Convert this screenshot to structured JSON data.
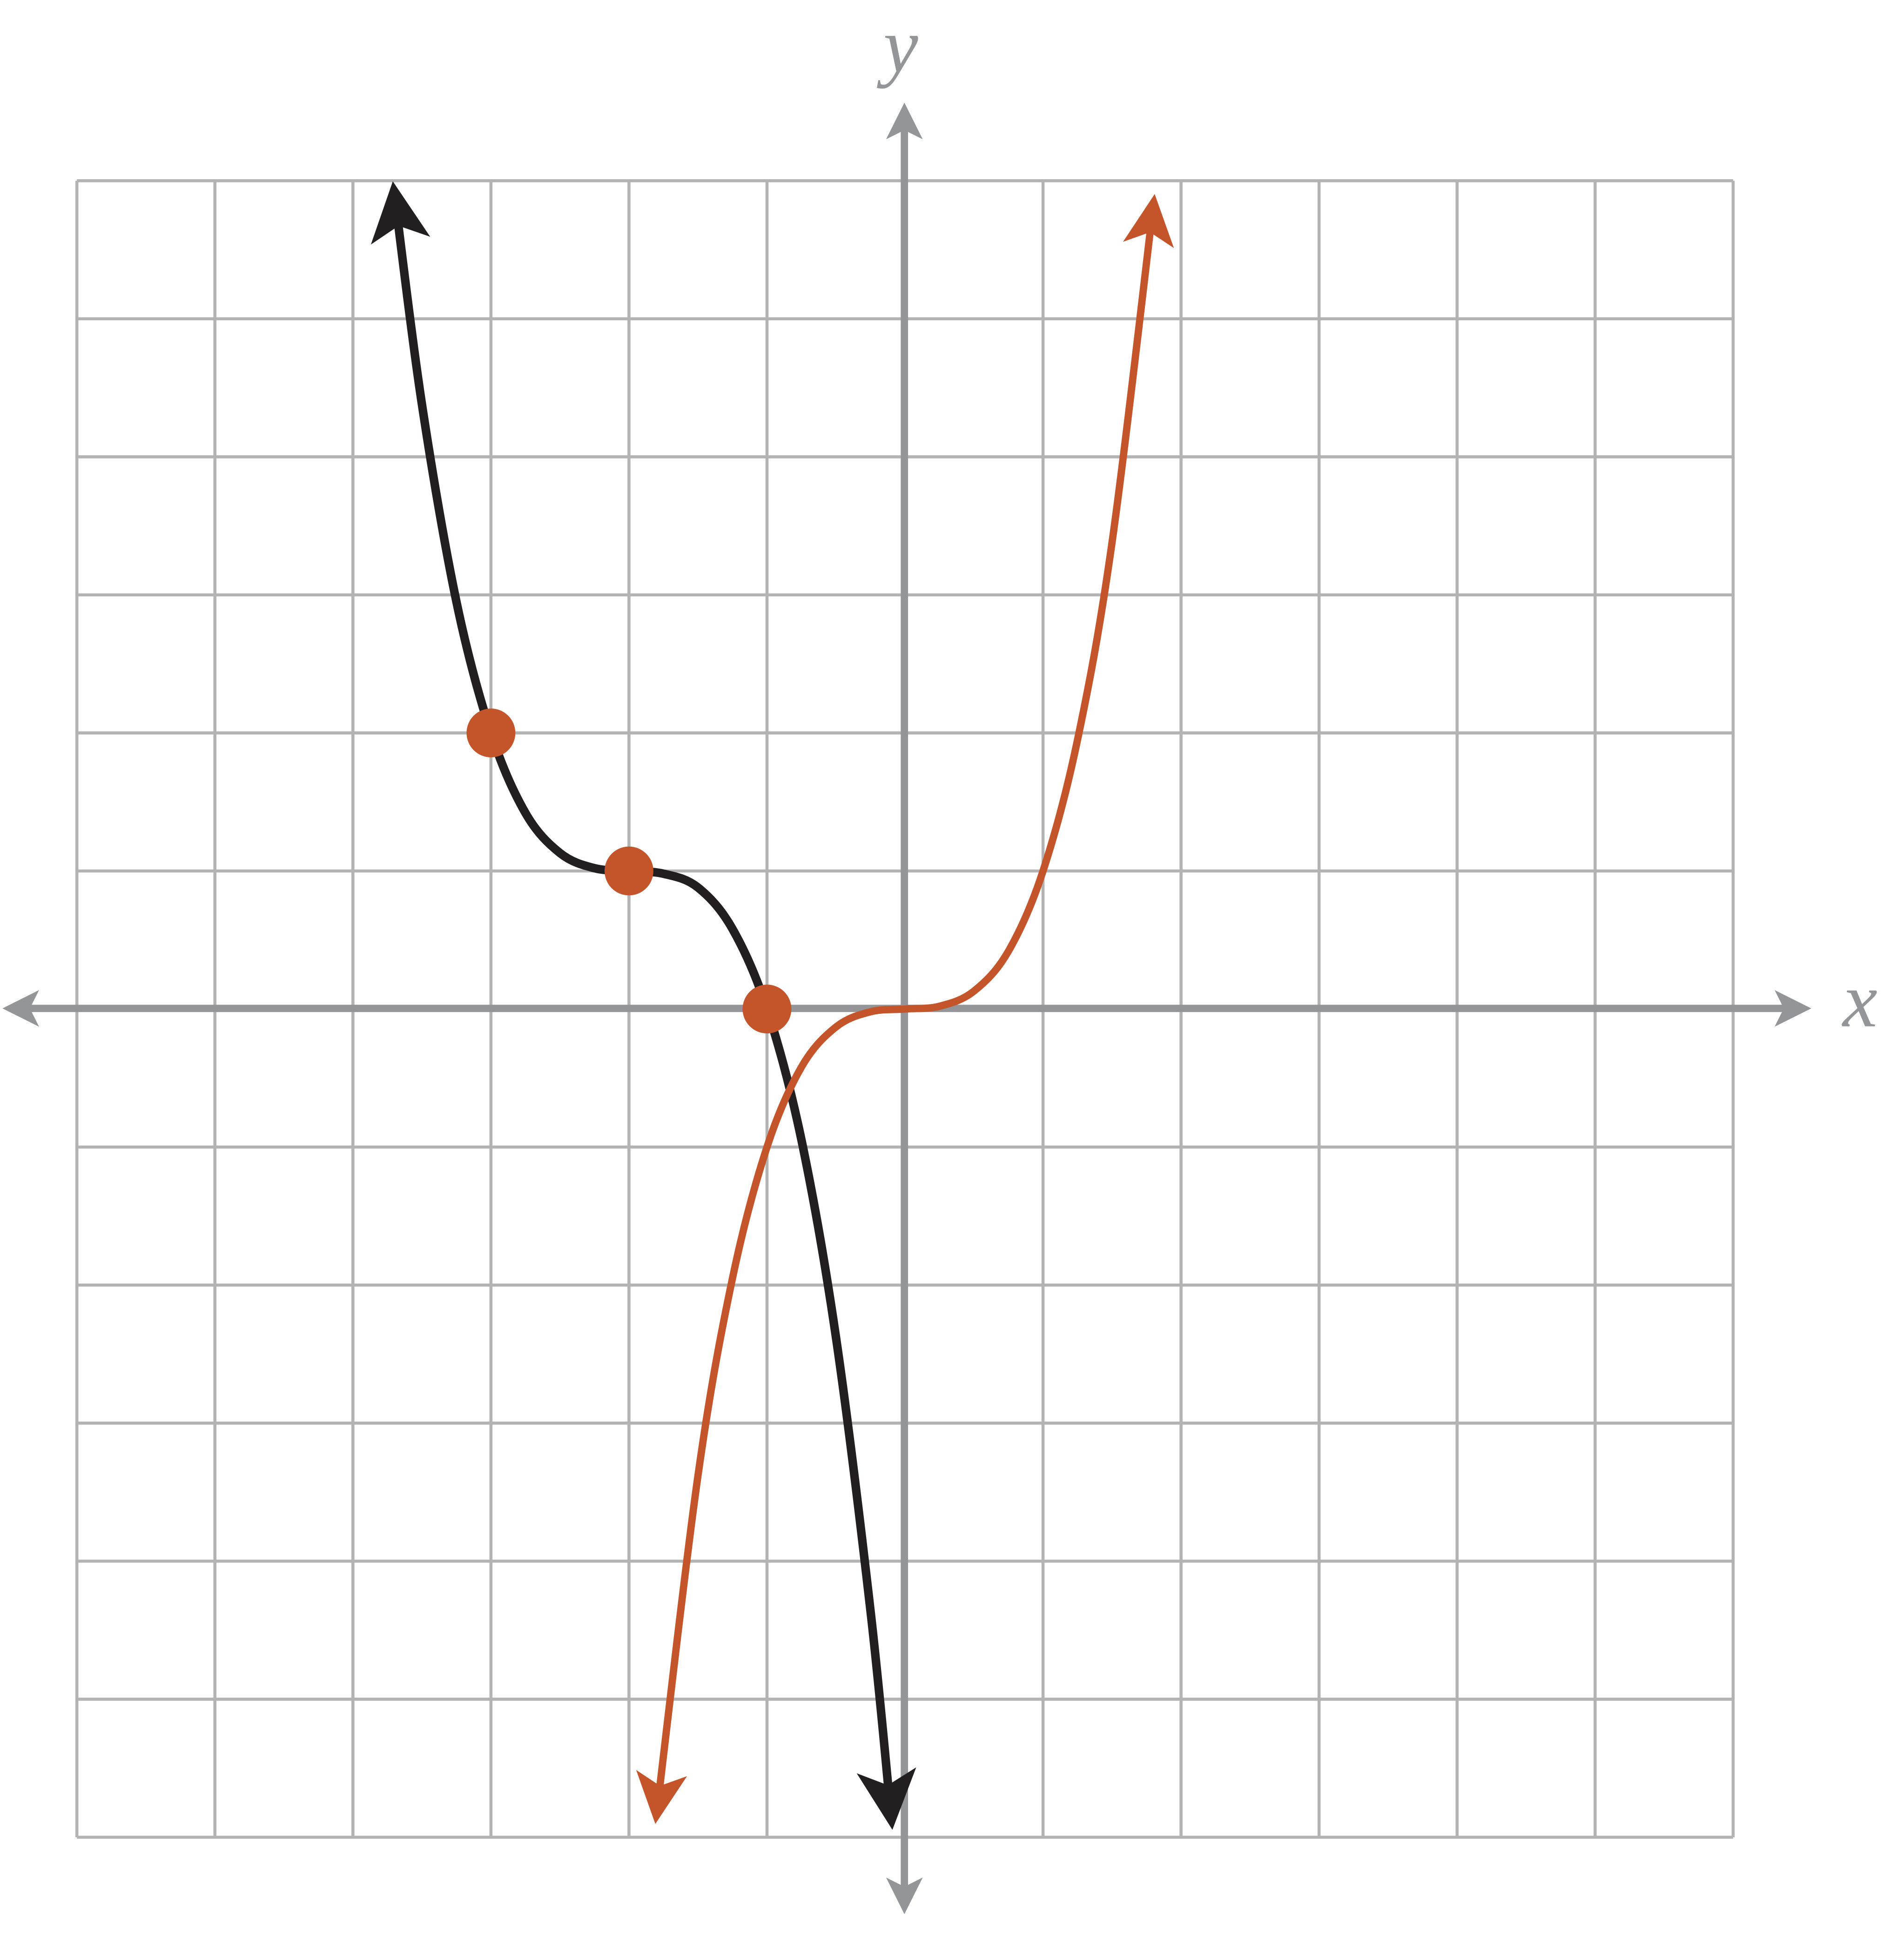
{
  "chart_data": {
    "type": "line",
    "x_label": "x",
    "y_label": "y",
    "xlim": [
      -6,
      6
    ],
    "ylim": [
      -6,
      6
    ],
    "xticks": [
      -6,
      -5,
      -4,
      -3,
      -2,
      -1,
      0,
      1,
      2,
      3,
      4,
      5,
      6
    ],
    "yticks": [
      -6,
      -5,
      -4,
      -3,
      -2,
      -1,
      0,
      1,
      2,
      3,
      4,
      5,
      6
    ],
    "grid": true,
    "series": [
      {
        "color": "#231f20",
        "x": [
          -3.7,
          -3.5,
          -3.25,
          -3,
          -2.75,
          -2.5,
          -2.25,
          -2,
          -1.75,
          -1.5,
          -1.25,
          -1,
          -0.75,
          -0.5,
          -0.25,
          -0.1
        ],
        "values": [
          5.91,
          4.38,
          2.95,
          2,
          1.42,
          1.13,
          1.02,
          1,
          0.98,
          0.88,
          0.58,
          0,
          -0.95,
          -2.38,
          -4.36,
          -5.86
        ]
      },
      {
        "color": "#c4552a",
        "x": [
          -1.8,
          -1.5,
          -1.25,
          -1,
          -0.75,
          -0.5,
          -0.25,
          0,
          0.25,
          0.5,
          0.75,
          1,
          1.25,
          1.5,
          1.8
        ],
        "values": [
          -5.83,
          -3.38,
          -1.95,
          -1,
          -0.42,
          -0.13,
          -0.02,
          0,
          0.02,
          0.13,
          0.42,
          1,
          1.95,
          3.38,
          5.83
        ]
      }
    ],
    "points": {
      "color": "#c4552a",
      "x": [
        -3,
        -2,
        -1
      ],
      "values": [
        2,
        1,
        0
      ]
    }
  }
}
